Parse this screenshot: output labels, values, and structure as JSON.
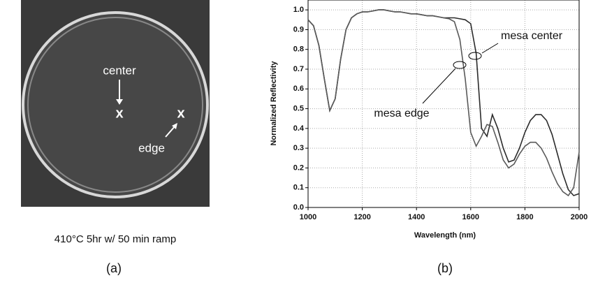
{
  "panel_a": {
    "center_label": "center",
    "edge_label": "edge",
    "center_mark": "x",
    "edge_mark": "x",
    "caption": "410°C 5hr w/ 50 min ramp",
    "panel_label": "(a)"
  },
  "chart_data": {
    "type": "line",
    "panel_label": "(b)",
    "x_label": "Wavelength (nm)",
    "y_label": "Normalized Reflectivity",
    "x": [
      1000,
      1020,
      1040,
      1060,
      1080,
      1100,
      1120,
      1140,
      1160,
      1180,
      1200,
      1220,
      1240,
      1260,
      1280,
      1300,
      1320,
      1340,
      1360,
      1380,
      1400,
      1420,
      1440,
      1460,
      1480,
      1500,
      1520,
      1540,
      1560,
      1580,
      1600,
      1620,
      1640,
      1660,
      1680,
      1700,
      1720,
      1740,
      1760,
      1780,
      1800,
      1820,
      1840,
      1860,
      1880,
      1900,
      1920,
      1940,
      1960,
      1980,
      2000
    ],
    "series": [
      {
        "name": "mesa center",
        "color": "#2b2b2b",
        "values": [
          0.95,
          0.92,
          0.82,
          0.65,
          0.49,
          0.55,
          0.75,
          0.9,
          0.96,
          0.98,
          0.99,
          0.99,
          0.995,
          1.0,
          1.0,
          0.995,
          0.99,
          0.99,
          0.985,
          0.98,
          0.98,
          0.975,
          0.97,
          0.97,
          0.965,
          0.96,
          0.96,
          0.96,
          0.955,
          0.95,
          0.93,
          0.78,
          0.4,
          0.36,
          0.47,
          0.4,
          0.3,
          0.23,
          0.24,
          0.3,
          0.38,
          0.44,
          0.47,
          0.47,
          0.44,
          0.37,
          0.27,
          0.17,
          0.09,
          0.06,
          0.07
        ]
      },
      {
        "name": "mesa edge",
        "color": "#5a5a5a",
        "values": [
          0.95,
          0.92,
          0.82,
          0.65,
          0.49,
          0.55,
          0.75,
          0.9,
          0.96,
          0.98,
          0.99,
          0.99,
          0.995,
          1.0,
          1.0,
          0.995,
          0.99,
          0.99,
          0.985,
          0.98,
          0.98,
          0.975,
          0.97,
          0.97,
          0.965,
          0.96,
          0.955,
          0.94,
          0.85,
          0.65,
          0.38,
          0.31,
          0.36,
          0.42,
          0.41,
          0.33,
          0.24,
          0.2,
          0.22,
          0.27,
          0.31,
          0.33,
          0.33,
          0.3,
          0.25,
          0.18,
          0.12,
          0.08,
          0.06,
          0.1,
          0.28
        ]
      }
    ],
    "xlim": [
      1000,
      2000
    ],
    "xticks": [
      1000,
      1200,
      1400,
      1600,
      1800,
      2000
    ],
    "ylim": [
      0,
      1.05
    ],
    "yticks": [
      {
        "value": 0,
        "label": "0.0"
      },
      0.1,
      0.2,
      0.3,
      0.4,
      0.5,
      0.6,
      0.7,
      0.8,
      0.9,
      {
        "value": 1,
        "label": "1.0"
      }
    ],
    "grid": true
  }
}
